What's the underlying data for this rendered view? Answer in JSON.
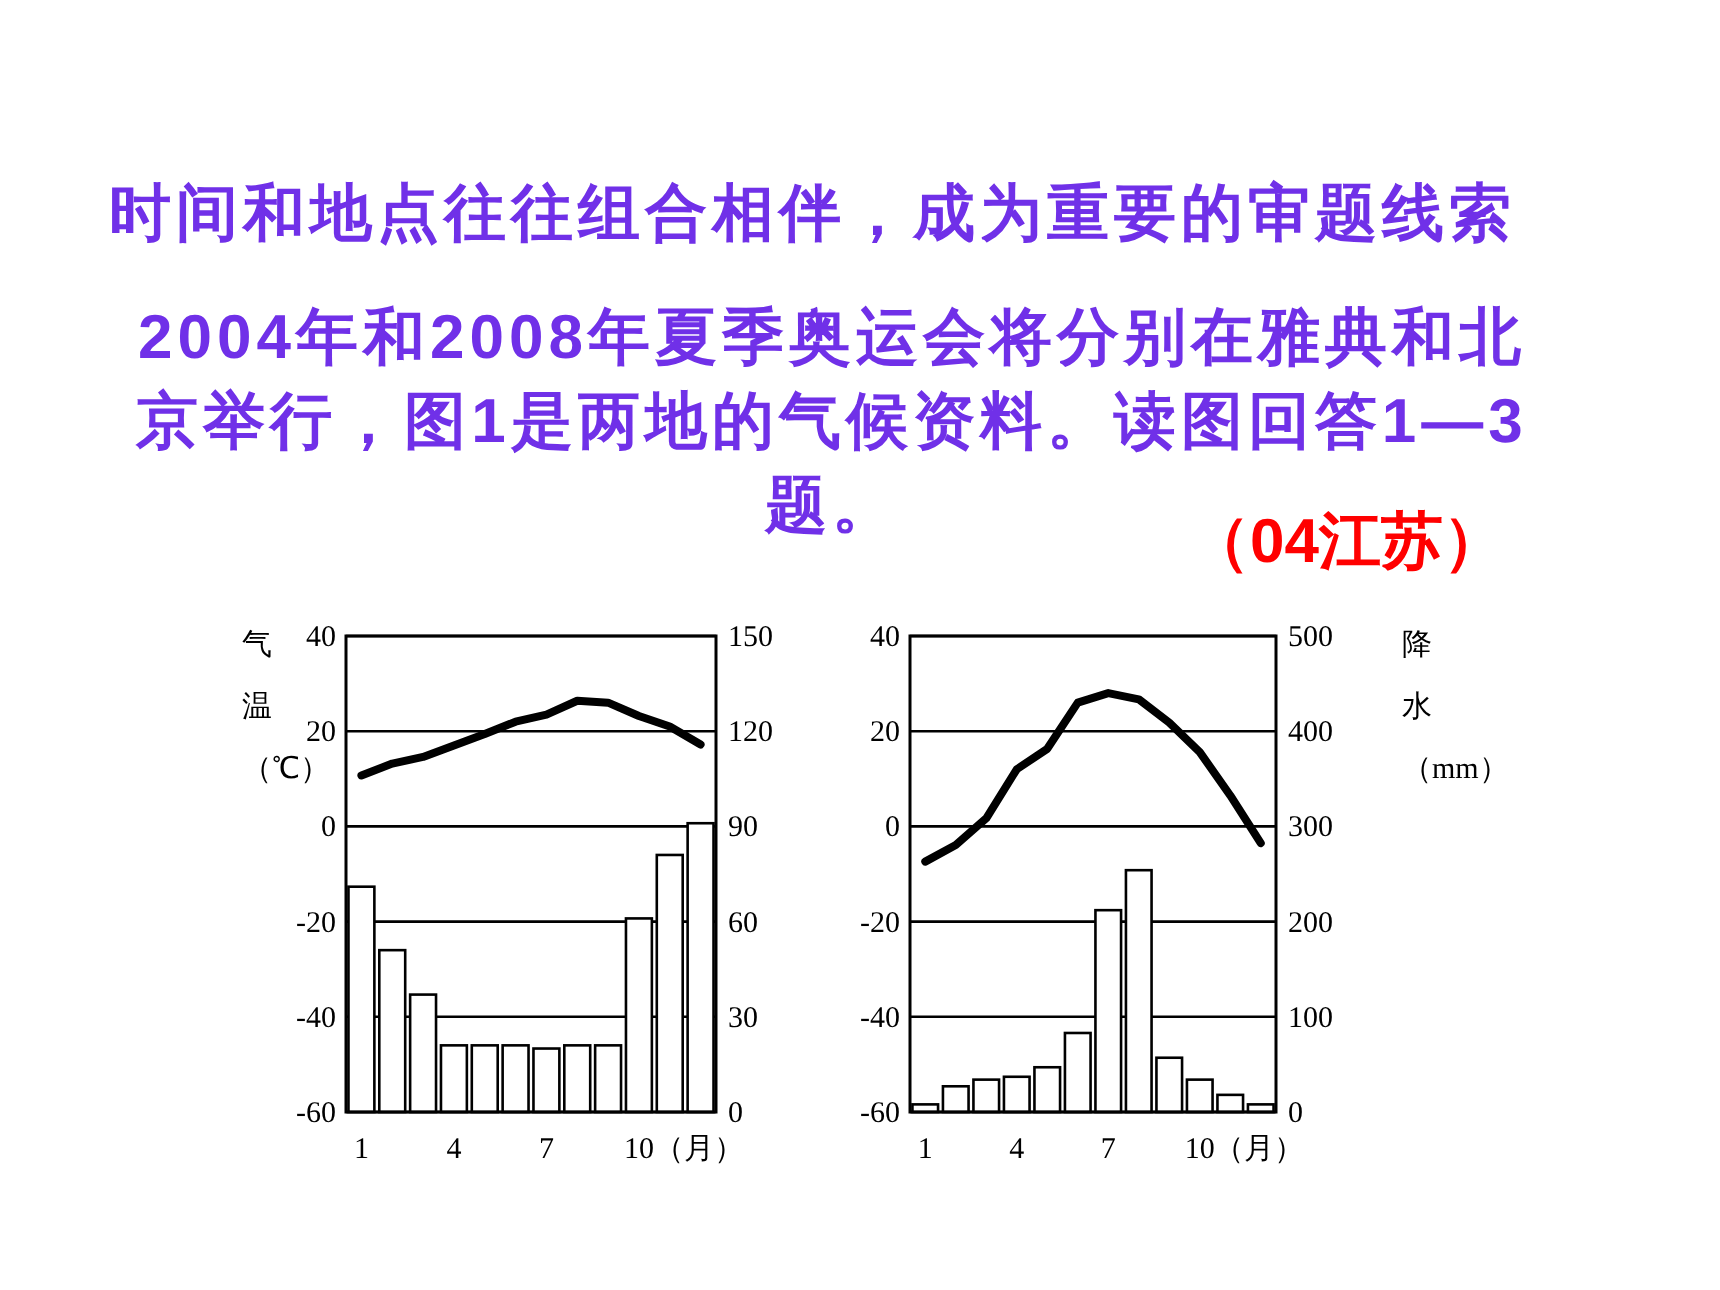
{
  "chart_data": [
    {
      "type": "bar",
      "title": "时间和地点往往组合相伴，成为重要的审题线索",
      "subtitle": "2004年和2008年夏季奥运会将分别在雅典和北京举行，图1是两地的气候资料。读图回答1—3题。",
      "annotations": [
        "（04江苏）"
      ],
      "categories": [
        "1",
        null,
        null,
        "4",
        null,
        null,
        "7",
        null,
        null,
        "10",
        null,
        null
      ],
      "xlabel": "（月）",
      "ylabel": "气温（℃）",
      "ylim": [
        -60,
        40
      ],
      "yticks": [
        -60,
        -40,
        -20,
        0,
        20,
        40
      ],
      "y2lim": [
        0,
        150
      ],
      "y2ticks": [
        0,
        30,
        60,
        90,
        120,
        150
      ],
      "grid": "y",
      "series": [
        {
          "axis": "y2",
          "color": "#ffffff",
          "values": [
            71,
            51,
            37,
            21,
            21,
            21,
            20,
            21,
            21,
            61,
            81,
            91
          ]
        },
        {
          "type": "line",
          "axis": "y",
          "color": "#000000",
          "values": [
            10.7,
            13.2,
            14.6,
            17,
            19.4,
            22,
            23.5,
            26.4,
            26,
            23.2,
            21,
            17.2
          ]
        }
      ]
    },
    {
      "type": "bar",
      "categories": [
        "1",
        null,
        null,
        "4",
        null,
        null,
        "7",
        null,
        null,
        "10",
        null,
        null
      ],
      "xlabel": "（月）",
      "y2label": "降水（mm）",
      "ylim": [
        -60,
        40
      ],
      "yticks": [
        -60,
        -40,
        -20,
        0,
        20,
        40
      ],
      "y2lim": [
        0,
        500
      ],
      "y2ticks": [
        0,
        100,
        200,
        300,
        400,
        500
      ],
      "grid": "y",
      "series": [
        {
          "axis": "y2",
          "color": "#ffffff",
          "values": [
            8,
            27,
            34,
            37,
            47,
            83,
            212,
            254,
            57,
            34,
            18,
            8
          ]
        },
        {
          "type": "line",
          "axis": "y",
          "color": "#000000",
          "values": [
            -7.4,
            -3.9,
            1.7,
            12,
            16.3,
            26,
            28,
            26.7,
            21.8,
            15.6,
            6.5,
            -3.5
          ]
        }
      ]
    }
  ]
}
